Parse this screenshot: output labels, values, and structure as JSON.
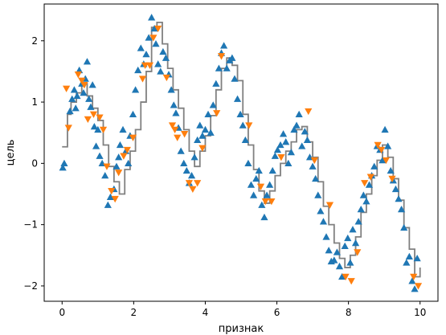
{
  "chart_data": {
    "type": "scatter",
    "xlabel": "признак",
    "ylabel": "цель",
    "xlim": [
      -0.5,
      10.5
    ],
    "ylim": [
      -2.25,
      2.6
    ],
    "xticks": [
      0,
      2,
      4,
      6,
      8,
      10
    ],
    "xtick_labels": [
      "0",
      "2",
      "4",
      "6",
      "8",
      "10"
    ],
    "yticks": [
      -2,
      -1,
      0,
      1,
      2
    ],
    "ytick_labels": [
      "−2",
      "−1",
      "0",
      "1",
      "2"
    ],
    "grid": false,
    "legend": "none",
    "series": [
      {
        "kind": "scatter",
        "marker": "triangle-up",
        "color": "#1f77b4",
        "x": [
          0.02,
          0.06,
          0.22,
          0.28,
          0.34,
          0.38,
          0.42,
          0.48,
          0.55,
          0.6,
          0.65,
          0.7,
          0.75,
          0.8,
          0.85,
          0.9,
          0.95,
          1.0,
          1.05,
          1.12,
          1.2,
          1.28,
          1.35,
          1.45,
          1.52,
          1.58,
          1.62,
          1.7,
          1.78,
          1.85,
          1.9,
          1.98,
          2.05,
          2.12,
          2.2,
          2.28,
          2.35,
          2.42,
          2.5,
          2.58,
          2.62,
          2.68,
          2.75,
          2.82,
          2.9,
          2.98,
          3.05,
          3.12,
          3.18,
          3.25,
          3.32,
          3.4,
          3.48,
          3.55,
          3.62,
          3.7,
          3.78,
          3.85,
          3.92,
          4.0,
          4.08,
          4.15,
          4.22,
          4.3,
          4.38,
          4.45,
          4.52,
          4.6,
          4.68,
          4.75,
          4.82,
          4.9,
          4.98,
          5.05,
          5.12,
          5.2,
          5.28,
          5.35,
          5.42,
          5.5,
          5.58,
          5.65,
          5.72,
          5.8,
          5.88,
          5.95,
          6.02,
          6.1,
          6.18,
          6.25,
          6.32,
          6.4,
          6.48,
          6.55,
          6.62,
          6.7,
          6.78,
          6.85,
          6.92,
          7.0,
          7.08,
          7.15,
          7.22,
          7.3,
          7.38,
          7.45,
          7.52,
          7.6,
          7.68,
          7.75,
          7.82,
          7.9,
          7.98,
          8.05,
          8.12,
          8.2,
          8.28,
          8.35,
          8.42,
          8.5,
          8.58,
          8.65,
          8.72,
          8.8,
          8.88,
          8.95,
          9.02,
          9.1,
          9.18,
          9.25,
          9.32,
          9.4,
          9.48,
          9.55,
          9.62,
          9.7,
          9.78,
          9.85,
          9.92
        ],
        "y": [
          -0.07,
          0.0,
          0.85,
          1.05,
          1.2,
          0.9,
          1.1,
          1.52,
          1.3,
          1.15,
          1.38,
          1.66,
          1.05,
          0.92,
          1.28,
          0.6,
          0.28,
          0.55,
          0.12,
          0.0,
          -0.2,
          -0.68,
          -0.55,
          -0.42,
          -0.05,
          0.1,
          0.3,
          0.55,
          0.2,
          0.0,
          0.45,
          0.8,
          1.2,
          1.52,
          1.88,
          1.62,
          1.78,
          2.05,
          2.38,
          2.2,
          1.95,
          1.62,
          1.5,
          1.82,
          1.72,
          1.45,
          1.2,
          0.95,
          0.82,
          0.58,
          0.2,
          0.0,
          -0.12,
          -0.32,
          -0.2,
          0.1,
          0.38,
          0.62,
          0.45,
          0.55,
          0.8,
          0.5,
          0.95,
          1.3,
          1.55,
          1.8,
          1.92,
          1.55,
          1.68,
          1.72,
          1.38,
          1.05,
          0.8,
          0.62,
          0.38,
          0.0,
          -0.35,
          -0.52,
          -0.25,
          -0.12,
          -0.68,
          -0.88,
          -0.52,
          -0.35,
          -0.12,
          0.12,
          0.22,
          0.3,
          0.48,
          0.35,
          0.0,
          0.18,
          0.55,
          0.62,
          0.8,
          0.28,
          0.52,
          0.38,
          0.1,
          -0.05,
          -0.25,
          -0.52,
          -0.78,
          -0.95,
          -1.2,
          -1.42,
          -1.6,
          -1.58,
          -1.45,
          -1.68,
          -1.85,
          -1.35,
          -1.22,
          -1.62,
          -1.08,
          -1.3,
          -0.95,
          -0.75,
          -0.52,
          -0.62,
          -0.35,
          -0.2,
          -0.05,
          0.28,
          0.22,
          0.05,
          0.55,
          0.28,
          -0.12,
          -0.28,
          -0.42,
          -0.58,
          -0.75,
          -1.05,
          -1.62,
          -1.52,
          -1.92,
          -2.05,
          -1.55
        ]
      },
      {
        "kind": "scatter",
        "marker": "triangle-down",
        "color": "#ff7f0e",
        "x": [
          0.12,
          0.18,
          0.45,
          0.55,
          0.62,
          0.72,
          0.88,
          1.05,
          1.15,
          1.25,
          1.38,
          1.48,
          1.58,
          1.72,
          1.82,
          1.98,
          2.25,
          2.32,
          2.45,
          2.55,
          2.68,
          2.92,
          3.08,
          3.15,
          3.22,
          3.42,
          3.55,
          3.65,
          3.78,
          3.92,
          4.32,
          4.45,
          5.22,
          5.55,
          5.68,
          5.85,
          6.12,
          6.88,
          7.05,
          7.48,
          7.92,
          8.08,
          8.25,
          8.45,
          8.62,
          8.82,
          8.92,
          9.05,
          9.22,
          9.82,
          9.95
        ],
        "y": [
          1.22,
          0.58,
          1.45,
          1.35,
          1.28,
          0.72,
          0.8,
          0.75,
          0.55,
          -0.05,
          -0.45,
          -0.58,
          -0.15,
          0.12,
          0.22,
          0.42,
          1.38,
          1.6,
          1.6,
          2.05,
          2.2,
          1.4,
          0.62,
          0.55,
          0.42,
          0.48,
          -0.32,
          -0.42,
          -0.32,
          0.25,
          0.82,
          1.75,
          0.62,
          -0.38,
          -0.62,
          -0.62,
          0.1,
          0.85,
          0.05,
          -0.68,
          -1.85,
          -1.92,
          -1.45,
          -0.32,
          -0.22,
          0.3,
          0.22,
          0.05,
          -0.25,
          -1.85,
          -2.0
        ]
      },
      {
        "kind": "step-line",
        "color": "#808080",
        "x": [
          0.0,
          0.15,
          0.25,
          0.4,
          0.55,
          0.7,
          0.85,
          1.0,
          1.15,
          1.3,
          1.45,
          1.6,
          1.75,
          1.9,
          2.05,
          2.2,
          2.35,
          2.5,
          2.65,
          2.8,
          2.95,
          3.1,
          3.25,
          3.4,
          3.55,
          3.7,
          3.85,
          4.0,
          4.15,
          4.3,
          4.45,
          4.6,
          4.75,
          4.9,
          5.05,
          5.2,
          5.35,
          5.5,
          5.65,
          5.8,
          5.95,
          6.1,
          6.25,
          6.4,
          6.55,
          6.7,
          6.85,
          7.0,
          7.15,
          7.3,
          7.45,
          7.6,
          7.75,
          7.9,
          8.05,
          8.2,
          8.35,
          8.5,
          8.65,
          8.8,
          8.95,
          9.1,
          9.25,
          9.4,
          9.55,
          9.7,
          9.85,
          10.0
        ],
        "y": [
          0.27,
          0.8,
          1.0,
          1.15,
          1.3,
          1.1,
          0.9,
          0.7,
          0.3,
          -0.05,
          -0.3,
          -0.5,
          -0.1,
          0.2,
          0.55,
          1.0,
          1.5,
          2.22,
          2.3,
          1.95,
          1.55,
          1.2,
          0.9,
          0.55,
          0.2,
          -0.05,
          0.2,
          0.45,
          0.78,
          1.2,
          1.55,
          1.72,
          1.6,
          1.35,
          0.8,
          0.3,
          -0.1,
          -0.45,
          -0.65,
          -0.45,
          -0.2,
          0.0,
          0.2,
          0.35,
          0.55,
          0.6,
          0.35,
          0.1,
          -0.3,
          -0.7,
          -1.0,
          -1.3,
          -1.55,
          -1.7,
          -1.5,
          -1.2,
          -0.8,
          -0.5,
          -0.2,
          0.05,
          0.3,
          0.1,
          -0.25,
          -0.6,
          -1.05,
          -1.4,
          -1.85,
          -1.7
        ]
      }
    ]
  }
}
